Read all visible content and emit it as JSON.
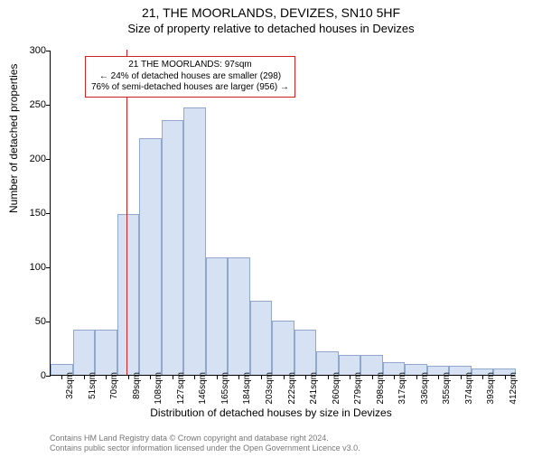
{
  "title_line1": "21, THE MOORLANDS, DEVIZES, SN10 5HF",
  "title_line2": "Size of property relative to detached houses in Devizes",
  "ylabel": "Number of detached properties",
  "xlabel": "Distribution of detached houses by size in Devizes",
  "footer_line1": "Contains HM Land Registry data © Crown copyright and database right 2024.",
  "footer_line2": "Contains public sector information licensed under the Open Government Licence v3.0.",
  "chart": {
    "type": "histogram",
    "background_color": "#ffffff",
    "axis_color": "#000000",
    "bar_fill": "#d6e2f3",
    "bar_stroke": "#8fa8cc",
    "bar_stroke_width": 1,
    "vline_color": "#d02020",
    "vline_x": 97,
    "ylim": [
      0,
      300
    ],
    "ytick_step": 50,
    "x_start": 32,
    "x_step": 19,
    "x_count": 21,
    "x_unit": "sqm",
    "values": [
      10,
      42,
      42,
      148,
      218,
      235,
      247,
      108,
      108,
      68,
      50,
      42,
      22,
      18,
      18,
      12,
      10,
      8,
      8,
      6,
      6
    ],
    "label_fontsize": 12,
    "tick_fontsize": 11,
    "xtick_fontsize": 10
  },
  "annotation": {
    "border_color": "#d02020",
    "lines": [
      "21 THE MOORLANDS: 97sqm",
      "← 24% of detached houses are smaller (298)",
      "76% of semi-detached houses are larger (956) →"
    ]
  }
}
